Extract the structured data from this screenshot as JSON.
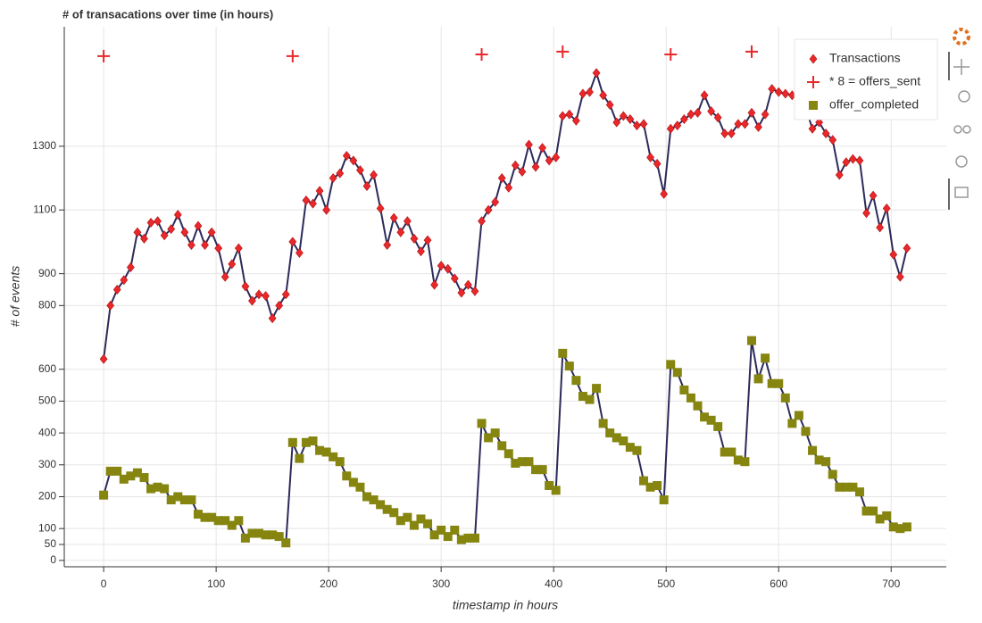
{
  "chart_data": {
    "type": "line",
    "title": "# of transacations over time (in hours)",
    "xlabel": "timestamp in hours",
    "ylabel": "# of events",
    "xlim": [
      -35,
      749
    ],
    "ylim": [
      -20,
      1675
    ],
    "xticks": [
      0,
      100,
      200,
      300,
      400,
      500,
      600,
      700
    ],
    "yticks": [
      0,
      50,
      100,
      200,
      300,
      400,
      500,
      600,
      800,
      900,
      1100,
      1300
    ],
    "grid": true,
    "legend": "top-right",
    "line_color": "#2b2a5a",
    "x": [
      0,
      6,
      12,
      18,
      24,
      30,
      36,
      42,
      48,
      54,
      60,
      66,
      72,
      78,
      84,
      90,
      96,
      102,
      108,
      114,
      120,
      126,
      132,
      138,
      144,
      150,
      156,
      162,
      168,
      174,
      180,
      186,
      192,
      198,
      204,
      210,
      216,
      222,
      228,
      234,
      240,
      246,
      252,
      258,
      264,
      270,
      276,
      282,
      288,
      294,
      300,
      306,
      312,
      318,
      324,
      330,
      336,
      342,
      348,
      354,
      360,
      366,
      372,
      378,
      384,
      390,
      396,
      402,
      408,
      414,
      420,
      426,
      432,
      438,
      444,
      450,
      456,
      462,
      468,
      474,
      480,
      486,
      492,
      498,
      504,
      510,
      516,
      522,
      528,
      534,
      540,
      546,
      552,
      558,
      564,
      570,
      576,
      582,
      588,
      594,
      600,
      606,
      612,
      618,
      624,
      630,
      636,
      642,
      648,
      654,
      660,
      666,
      672,
      678,
      684,
      690,
      696,
      702,
      708,
      714
    ],
    "series": [
      {
        "name": "Transactions",
        "color": "#e8282b",
        "marker": "diamond",
        "values": [
          632,
          800,
          850,
          880,
          920,
          1030,
          1010,
          1060,
          1065,
          1020,
          1040,
          1085,
          1030,
          990,
          1050,
          990,
          1030,
          980,
          890,
          930,
          980,
          860,
          815,
          835,
          830,
          760,
          800,
          835,
          1000,
          965,
          1130,
          1120,
          1160,
          1100,
          1200,
          1215,
          1270,
          1255,
          1225,
          1175,
          1210,
          1105,
          990,
          1075,
          1030,
          1065,
          1010,
          970,
          1005,
          865,
          925,
          915,
          885,
          840,
          865,
          845,
          1065,
          1100,
          1125,
          1200,
          1170,
          1240,
          1220,
          1305,
          1235,
          1295,
          1255,
          1265,
          1395,
          1400,
          1380,
          1465,
          1470,
          1530,
          1460,
          1430,
          1375,
          1395,
          1385,
          1365,
          1370,
          1265,
          1245,
          1150,
          1355,
          1365,
          1385,
          1400,
          1405,
          1460,
          1410,
          1390,
          1340,
          1340,
          1370,
          1370,
          1405,
          1360,
          1400,
          1480,
          1470,
          1465,
          1460,
          1450,
          1420,
          1355,
          1375,
          1340,
          1320,
          1210,
          1250,
          1260,
          1255,
          1090,
          1145,
          1045,
          1105,
          960,
          890,
          980
        ]
      },
      {
        "name": "* 8 = offers_sent",
        "color": "#e8282b",
        "marker": "cross",
        "x": [
          0,
          168,
          336,
          408,
          504,
          576
        ],
        "values": [
          1583,
          1583,
          1588,
          1597,
          1588,
          1597
        ]
      },
      {
        "name": "offer_completed",
        "color": "#858510",
        "marker": "square",
        "values": [
          205,
          280,
          280,
          255,
          265,
          275,
          260,
          225,
          230,
          225,
          190,
          200,
          190,
          190,
          145,
          135,
          135,
          125,
          125,
          110,
          125,
          70,
          85,
          85,
          80,
          80,
          75,
          55,
          370,
          320,
          370,
          375,
          345,
          340,
          325,
          310,
          265,
          245,
          230,
          200,
          190,
          175,
          160,
          150,
          125,
          135,
          110,
          130,
          115,
          80,
          95,
          75,
          95,
          65,
          70,
          70,
          430,
          385,
          400,
          360,
          335,
          305,
          310,
          310,
          285,
          285,
          235,
          220,
          650,
          610,
          565,
          515,
          505,
          540,
          430,
          400,
          385,
          375,
          355,
          345,
          250,
          230,
          235,
          190,
          615,
          590,
          535,
          510,
          485,
          450,
          440,
          420,
          340,
          340,
          315,
          310,
          690,
          570,
          635,
          555,
          555,
          510,
          430,
          455,
          405,
          345,
          315,
          310,
          270,
          230,
          230,
          230,
          215,
          155,
          155,
          130,
          140,
          105,
          100,
          105
        ]
      }
    ]
  }
}
